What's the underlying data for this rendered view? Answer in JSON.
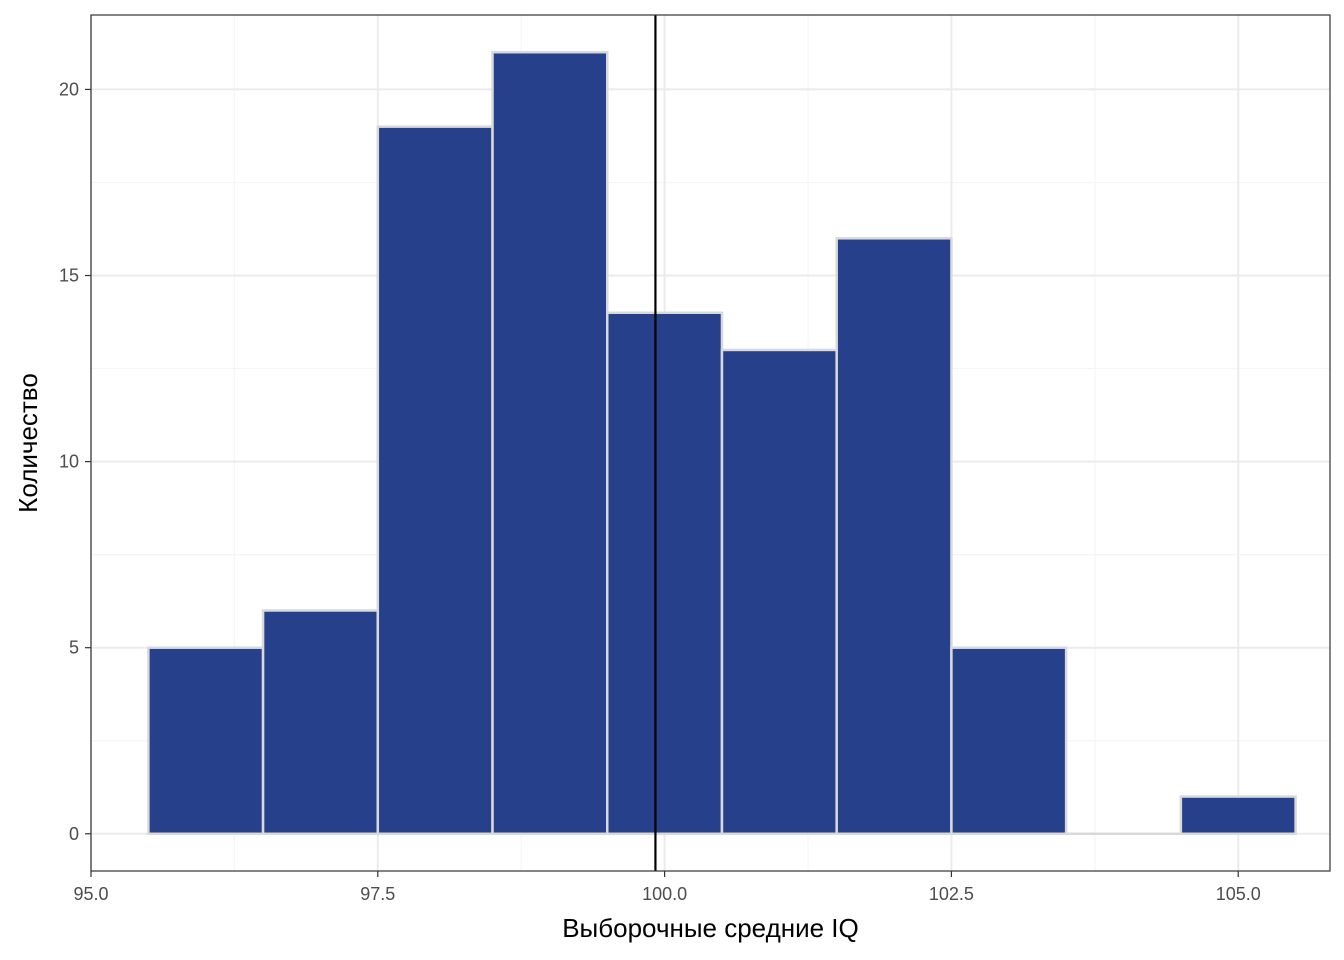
{
  "chart_data": {
    "type": "bar",
    "subtype": "histogram",
    "xlabel": "Выборочные средние IQ",
    "ylabel": "Количество",
    "xlim": [
      95.0,
      105.8
    ],
    "ylim": [
      -1.0,
      22.0
    ],
    "xticks": [
      95.0,
      97.5,
      100.0,
      102.5,
      105.0
    ],
    "xtick_labels": [
      "95.0",
      "97.5",
      "100.0",
      "102.5",
      "105.0"
    ],
    "yticks": [
      0,
      5,
      10,
      15,
      20
    ],
    "ytick_labels": [
      "0",
      "5",
      "10",
      "15",
      "20"
    ],
    "bins": [
      {
        "x0": 95.5,
        "x1": 96.5,
        "count": 5
      },
      {
        "x0": 96.5,
        "x1": 97.5,
        "count": 6
      },
      {
        "x0": 97.5,
        "x1": 98.5,
        "count": 19
      },
      {
        "x0": 98.5,
        "x1": 99.5,
        "count": 21
      },
      {
        "x0": 99.5,
        "x1": 100.5,
        "count": 14
      },
      {
        "x0": 100.5,
        "x1": 101.5,
        "count": 13
      },
      {
        "x0": 101.5,
        "x1": 102.5,
        "count": 16
      },
      {
        "x0": 102.5,
        "x1": 103.5,
        "count": 5
      },
      {
        "x0": 103.5,
        "x1": 104.5,
        "count": 0
      },
      {
        "x0": 104.5,
        "x1": 105.5,
        "count": 1
      }
    ],
    "vline_x": 99.92,
    "grid": true,
    "legend": false,
    "colors": {
      "bar_fill": "#26408B",
      "bar_stroke": "#D9D9D9",
      "vline": "#000000",
      "grid_major": "#EBEBEB",
      "grid_minor": "#F5F5F5",
      "panel_border": "#333333"
    }
  }
}
